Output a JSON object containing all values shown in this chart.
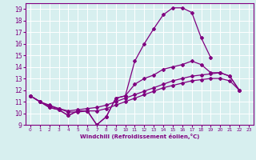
{
  "title": "",
  "xlabel": "Windchill (Refroidissement éolien,°C)",
  "background_color": "#d7efef",
  "grid_color": "#ffffff",
  "line_color": "#800080",
  "ylim": [
    9,
    19.5
  ],
  "xlim": [
    -0.5,
    23.5
  ],
  "yticks": [
    9,
    10,
    11,
    12,
    13,
    14,
    15,
    16,
    17,
    18,
    19
  ],
  "xticks": [
    0,
    1,
    2,
    3,
    4,
    5,
    6,
    7,
    8,
    9,
    10,
    11,
    12,
    13,
    14,
    15,
    16,
    17,
    18,
    19,
    20,
    21,
    22,
    23
  ],
  "series": [
    {
      "x": [
        0,
        1,
        2,
        3,
        4,
        5,
        6,
        7,
        8,
        9,
        10,
        11,
        12,
        13,
        14,
        15,
        16,
        17,
        18,
        19
      ],
      "y": [
        11.5,
        11.0,
        10.5,
        10.3,
        9.8,
        10.2,
        10.2,
        9.0,
        9.7,
        11.3,
        11.5,
        14.5,
        16.0,
        17.3,
        18.5,
        19.1,
        19.1,
        18.7,
        16.5,
        14.8
      ]
    },
    {
      "x": [
        0,
        1,
        2,
        3,
        4,
        5,
        6,
        7,
        8,
        9,
        10,
        11,
        12,
        13,
        14,
        15,
        16,
        17,
        18,
        19,
        20,
        21,
        22
      ],
      "y": [
        11.5,
        11.0,
        10.5,
        10.3,
        9.8,
        10.2,
        10.2,
        9.0,
        9.7,
        11.3,
        11.5,
        12.5,
        13.0,
        13.3,
        13.8,
        14.0,
        14.2,
        14.5,
        14.2,
        13.5,
        13.5,
        13.2,
        12.0
      ]
    },
    {
      "x": [
        0,
        1,
        2,
        3,
        4,
        5,
        6,
        7,
        8,
        9,
        10,
        11,
        12,
        13,
        14,
        15,
        16,
        17,
        18,
        19,
        20,
        21,
        22
      ],
      "y": [
        11.5,
        11.0,
        10.7,
        10.4,
        10.2,
        10.3,
        10.4,
        10.5,
        10.7,
        11.0,
        11.3,
        11.6,
        11.9,
        12.2,
        12.5,
        12.8,
        13.0,
        13.2,
        13.3,
        13.4,
        13.5,
        13.2,
        12.0
      ]
    },
    {
      "x": [
        0,
        1,
        2,
        3,
        4,
        5,
        6,
        7,
        8,
        9,
        10,
        11,
        12,
        13,
        14,
        15,
        16,
        17,
        18,
        19,
        20,
        21,
        22
      ],
      "y": [
        11.5,
        11.0,
        10.6,
        10.4,
        10.1,
        10.1,
        10.2,
        10.2,
        10.4,
        10.7,
        11.0,
        11.3,
        11.6,
        11.9,
        12.2,
        12.4,
        12.6,
        12.8,
        12.9,
        13.0,
        13.0,
        12.8,
        12.0
      ]
    }
  ]
}
